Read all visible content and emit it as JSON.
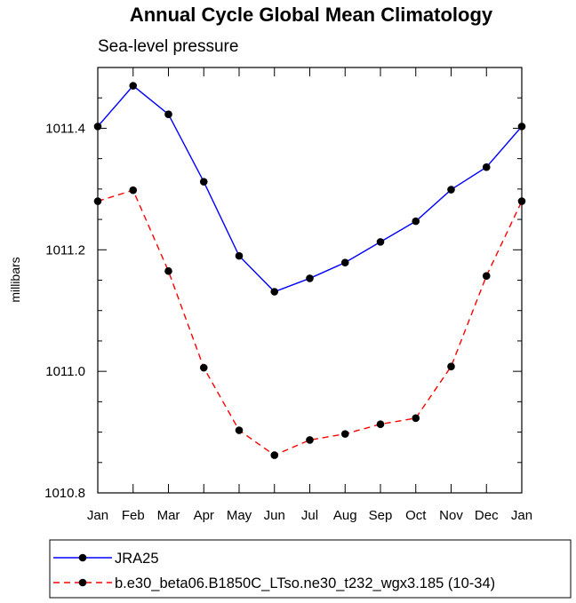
{
  "chart_data": {
    "type": "line",
    "title": "Annual Cycle Global Mean Climatology",
    "subtitle": "Sea-level pressure",
    "xlabel": "",
    "ylabel": "millibars",
    "categories": [
      "Jan",
      "Feb",
      "Mar",
      "Apr",
      "May",
      "Jun",
      "Jul",
      "Aug",
      "Sep",
      "Oct",
      "Nov",
      "Dec",
      "Jan"
    ],
    "ylim": [
      1010.8,
      1011.5
    ],
    "yticks": [
      1010.8,
      1011.0,
      1011.2,
      1011.4
    ],
    "ytick_labels": [
      "1010.8",
      "1011.0",
      "1011.2",
      "1011.4"
    ],
    "grid": false,
    "legend_position": "bottom",
    "series": [
      {
        "name": "JRA25",
        "color": "#0000ff",
        "line_style": "solid",
        "values": [
          1011.403,
          1011.47,
          1011.423,
          1011.312,
          1011.19,
          1011.131,
          1011.153,
          1011.179,
          1011.213,
          1011.247,
          1011.299,
          1011.336,
          1011.403
        ]
      },
      {
        "name": "b.e30_beta06.B1850C_LTso.ne30_t232_wgx3.185 (10-34)",
        "color": "#ff0000",
        "line_style": "dashed",
        "values": [
          1011.28,
          1011.298,
          1011.165,
          1011.006,
          1010.903,
          1010.862,
          1010.887,
          1010.897,
          1010.913,
          1010.923,
          1011.008,
          1011.157,
          1011.28
        ]
      }
    ]
  }
}
